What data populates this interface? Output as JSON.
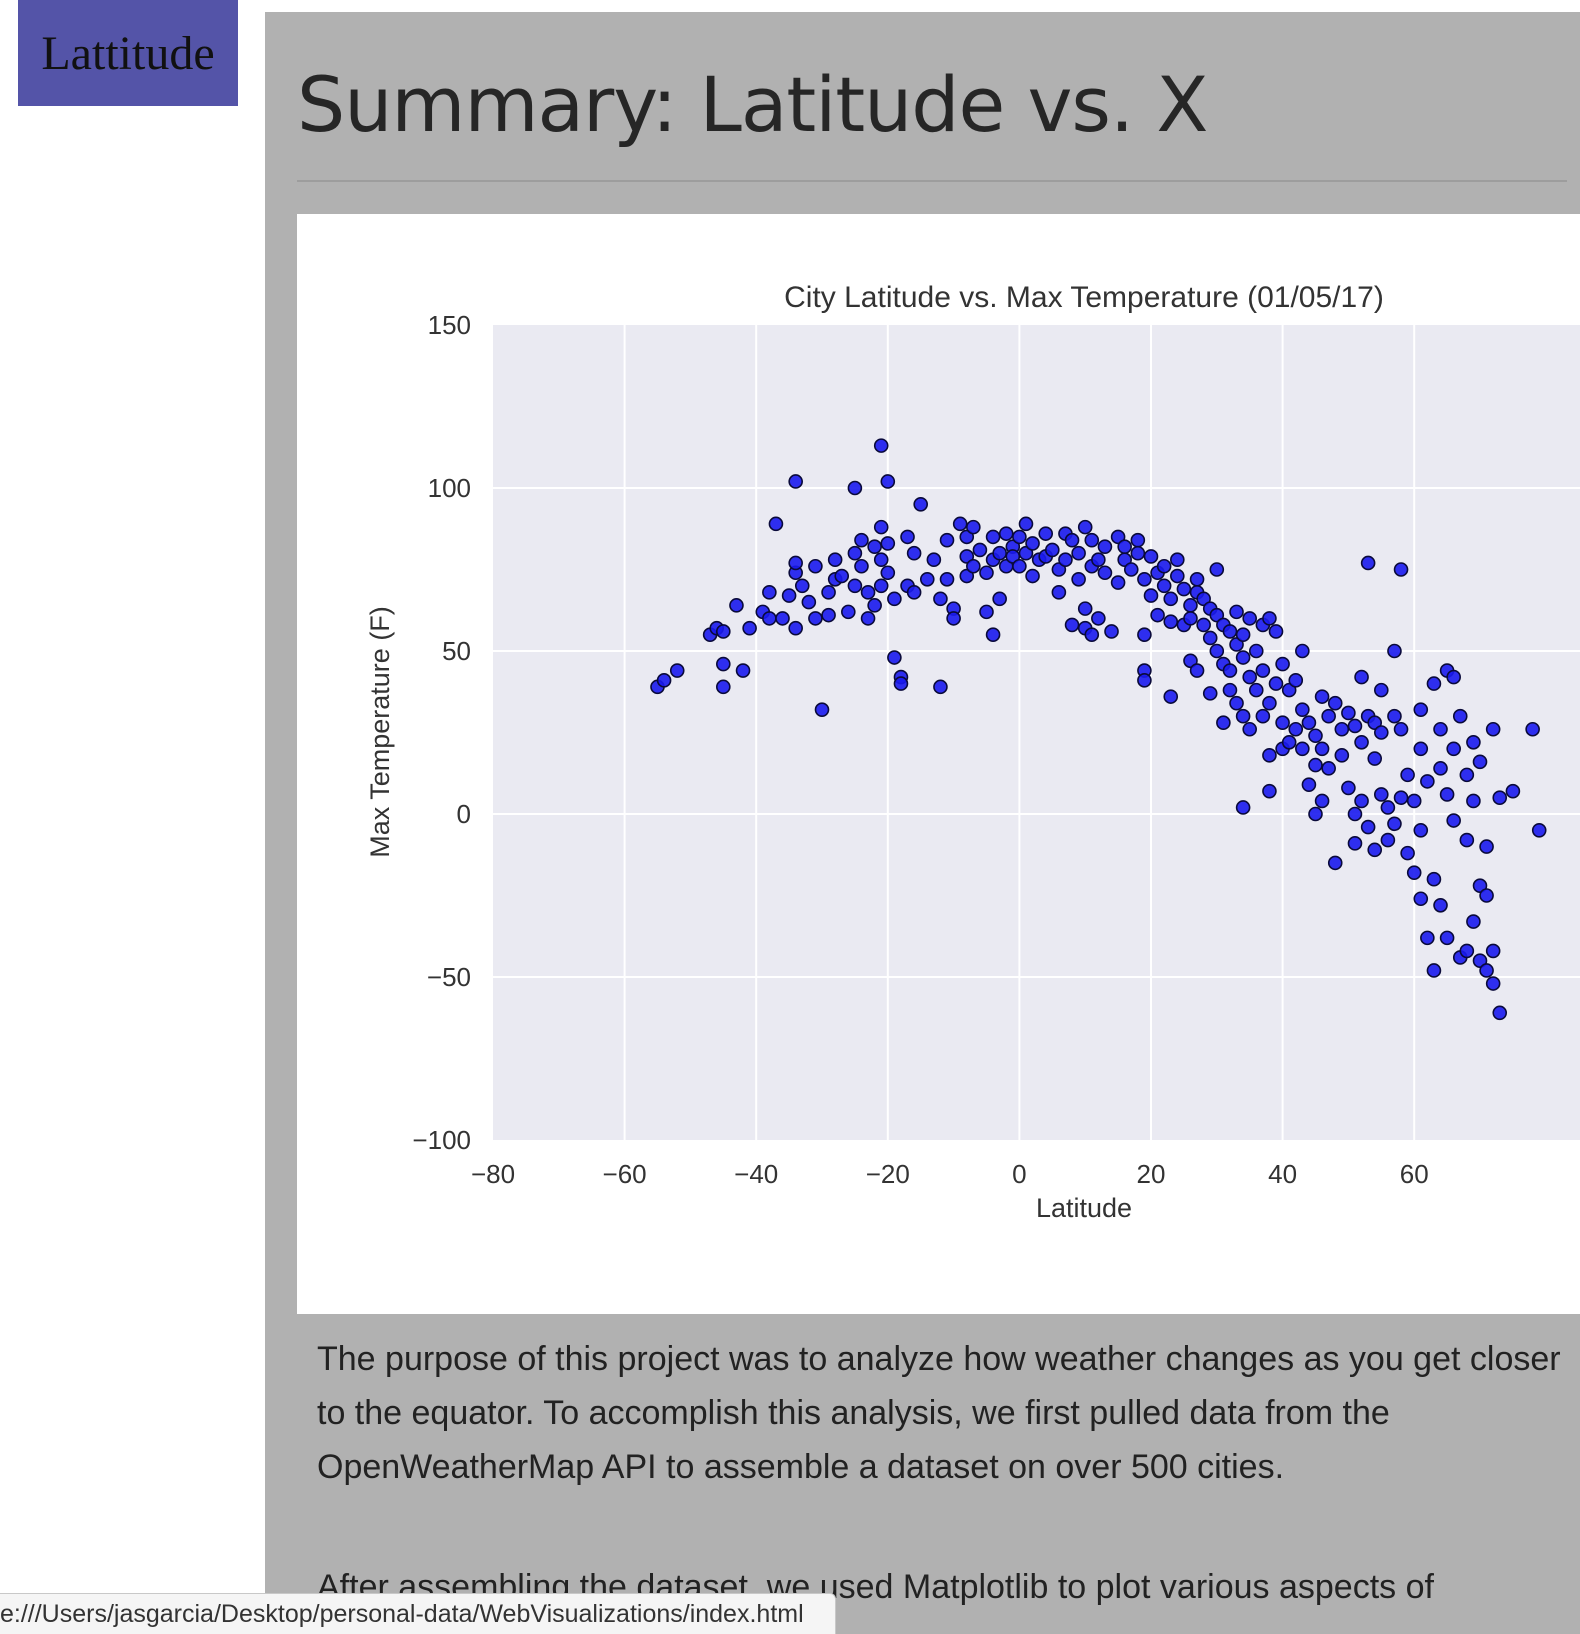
{
  "brand": {
    "label": "Lattitude"
  },
  "page": {
    "title": "Summary: Latitude vs. X"
  },
  "paragraphs": [
    "The purpose of this project was to analyze how weather changes as you get closer to the equator. To accomplish this analysis, we first pulled data from the OpenWeatherMap API to assemble a dataset on over 500 cities.",
    "After assembling the dataset, we used Matplotlib to plot various aspects of"
  ],
  "status_bar": {
    "url": "e:///Users/jasgarcia/Desktop/personal-data/WebVisualizations/index.html"
  },
  "chart_data": {
    "type": "scatter",
    "title": "City Latitude vs. Max Temperature (01/05/17)",
    "xlabel": "Latitude",
    "ylabel": "Max Temperature (F)",
    "xlim": [
      -80,
      80
    ],
    "ylim": [
      -100,
      150
    ],
    "xticks": [
      -80,
      -60,
      -40,
      -20,
      0,
      20,
      40,
      60
    ],
    "yticks": [
      -100,
      -50,
      0,
      50,
      100,
      150
    ],
    "grid": true,
    "colors": {
      "marker": "#1a1aee",
      "edge": "#0a0a3a",
      "plot_bg": "#eaeaf2",
      "grid": "#ffffff"
    },
    "points": [
      [
        -55,
        39
      ],
      [
        -54,
        41
      ],
      [
        -52,
        44
      ],
      [
        -47,
        55
      ],
      [
        -46,
        57
      ],
      [
        -45,
        56
      ],
      [
        -45,
        46
      ],
      [
        -45,
        39
      ],
      [
        -43,
        64
      ],
      [
        -42,
        44
      ],
      [
        -41,
        57
      ],
      [
        -39,
        62
      ],
      [
        -38,
        68
      ],
      [
        -38,
        60
      ],
      [
        -37,
        89
      ],
      [
        -36,
        60
      ],
      [
        -35,
        67
      ],
      [
        -34,
        74
      ],
      [
        -34,
        77
      ],
      [
        -34,
        57
      ],
      [
        -34,
        102
      ],
      [
        -33,
        70
      ],
      [
        -32,
        65
      ],
      [
        -31,
        76
      ],
      [
        -31,
        60
      ],
      [
        -30,
        32
      ],
      [
        -29,
        61
      ],
      [
        -29,
        68
      ],
      [
        -28,
        72
      ],
      [
        -28,
        78
      ],
      [
        -27,
        73
      ],
      [
        -26,
        62
      ],
      [
        -25,
        80
      ],
      [
        -25,
        70
      ],
      [
        -25,
        100
      ],
      [
        -24,
        84
      ],
      [
        -24,
        76
      ],
      [
        -23,
        60
      ],
      [
        -23,
        68
      ],
      [
        -22,
        82
      ],
      [
        -22,
        64
      ],
      [
        -21,
        88
      ],
      [
        -21,
        78
      ],
      [
        -21,
        70
      ],
      [
        -21,
        113
      ],
      [
        -20,
        102
      ],
      [
        -20,
        83
      ],
      [
        -20,
        74
      ],
      [
        -19,
        66
      ],
      [
        -19,
        48
      ],
      [
        -18,
        42
      ],
      [
        -18,
        40
      ],
      [
        -17,
        85
      ],
      [
        -17,
        70
      ],
      [
        -16,
        80
      ],
      [
        -16,
        68
      ],
      [
        -15,
        95
      ],
      [
        -14,
        72
      ],
      [
        -13,
        78
      ],
      [
        -12,
        66
      ],
      [
        -12,
        39
      ],
      [
        -11,
        84
      ],
      [
        -11,
        72
      ],
      [
        -10,
        63
      ],
      [
        -10,
        60
      ],
      [
        -9,
        89
      ],
      [
        -8,
        85
      ],
      [
        -8,
        79
      ],
      [
        -8,
        73
      ],
      [
        -7,
        88
      ],
      [
        -7,
        76
      ],
      [
        -6,
        81
      ],
      [
        -5,
        74
      ],
      [
        -5,
        62
      ],
      [
        -4,
        85
      ],
      [
        -4,
        78
      ],
      [
        -4,
        55
      ],
      [
        -3,
        80
      ],
      [
        -3,
        66
      ],
      [
        -2,
        86
      ],
      [
        -2,
        76
      ],
      [
        -1,
        82
      ],
      [
        -1,
        79
      ],
      [
        0,
        85
      ],
      [
        0,
        76
      ],
      [
        1,
        89
      ],
      [
        1,
        80
      ],
      [
        2,
        83
      ],
      [
        2,
        73
      ],
      [
        3,
        78
      ],
      [
        4,
        86
      ],
      [
        4,
        79
      ],
      [
        5,
        81
      ],
      [
        6,
        75
      ],
      [
        6,
        68
      ],
      [
        7,
        86
      ],
      [
        7,
        78
      ],
      [
        8,
        84
      ],
      [
        8,
        58
      ],
      [
        9,
        80
      ],
      [
        9,
        72
      ],
      [
        10,
        88
      ],
      [
        10,
        63
      ],
      [
        10,
        57
      ],
      [
        11,
        84
      ],
      [
        11,
        76
      ],
      [
        11,
        55
      ],
      [
        12,
        78
      ],
      [
        12,
        60
      ],
      [
        13,
        82
      ],
      [
        13,
        74
      ],
      [
        14,
        56
      ],
      [
        15,
        85
      ],
      [
        15,
        71
      ],
      [
        16,
        82
      ],
      [
        16,
        78
      ],
      [
        17,
        75
      ],
      [
        18,
        84
      ],
      [
        18,
        80
      ],
      [
        19,
        72
      ],
      [
        19,
        55
      ],
      [
        19,
        44
      ],
      [
        19,
        41
      ],
      [
        20,
        79
      ],
      [
        20,
        67
      ],
      [
        21,
        74
      ],
      [
        21,
        61
      ],
      [
        22,
        76
      ],
      [
        22,
        70
      ],
      [
        23,
        66
      ],
      [
        23,
        59
      ],
      [
        23,
        36
      ],
      [
        24,
        78
      ],
      [
        24,
        73
      ],
      [
        25,
        69
      ],
      [
        25,
        58
      ],
      [
        26,
        64
      ],
      [
        26,
        60
      ],
      [
        26,
        47
      ],
      [
        27,
        72
      ],
      [
        27,
        68
      ],
      [
        27,
        44
      ],
      [
        28,
        66
      ],
      [
        28,
        58
      ],
      [
        29,
        63
      ],
      [
        29,
        54
      ],
      [
        29,
        37
      ],
      [
        30,
        75
      ],
      [
        30,
        61
      ],
      [
        30,
        50
      ],
      [
        31,
        58
      ],
      [
        31,
        46
      ],
      [
        31,
        28
      ],
      [
        32,
        56
      ],
      [
        32,
        44
      ],
      [
        32,
        38
      ],
      [
        33,
        62
      ],
      [
        33,
        52
      ],
      [
        33,
        34
      ],
      [
        34,
        55
      ],
      [
        34,
        48
      ],
      [
        34,
        30
      ],
      [
        34,
        2
      ],
      [
        35,
        60
      ],
      [
        35,
        42
      ],
      [
        35,
        26
      ],
      [
        36,
        50
      ],
      [
        36,
        38
      ],
      [
        37,
        58
      ],
      [
        37,
        44
      ],
      [
        37,
        30
      ],
      [
        38,
        60
      ],
      [
        38,
        34
      ],
      [
        38,
        18
      ],
      [
        38,
        7
      ],
      [
        39,
        56
      ],
      [
        39,
        40
      ],
      [
        40,
        46
      ],
      [
        40,
        28
      ],
      [
        40,
        20
      ],
      [
        41,
        38
      ],
      [
        41,
        22
      ],
      [
        42,
        41
      ],
      [
        42,
        26
      ],
      [
        43,
        50
      ],
      [
        43,
        32
      ],
      [
        43,
        20
      ],
      [
        44,
        28
      ],
      [
        44,
        9
      ],
      [
        45,
        24
      ],
      [
        45,
        15
      ],
      [
        45,
        0
      ],
      [
        46,
        36
      ],
      [
        46,
        20
      ],
      [
        46,
        4
      ],
      [
        47,
        30
      ],
      [
        47,
        14
      ],
      [
        48,
        34
      ],
      [
        48,
        -15
      ],
      [
        49,
        26
      ],
      [
        49,
        18
      ],
      [
        50,
        31
      ],
      [
        50,
        8
      ],
      [
        51,
        27
      ],
      [
        51,
        0
      ],
      [
        51,
        -9
      ],
      [
        52,
        22
      ],
      [
        52,
        4
      ],
      [
        52,
        42
      ],
      [
        53,
        30
      ],
      [
        53,
        -4
      ],
      [
        53,
        77
      ],
      [
        54,
        17
      ],
      [
        54,
        28
      ],
      [
        54,
        -11
      ],
      [
        55,
        38
      ],
      [
        55,
        25
      ],
      [
        55,
        6
      ],
      [
        56,
        2
      ],
      [
        56,
        -8
      ],
      [
        57,
        30
      ],
      [
        57,
        50
      ],
      [
        57,
        -3
      ],
      [
        58,
        75
      ],
      [
        58,
        26
      ],
      [
        58,
        5
      ],
      [
        59,
        12
      ],
      [
        59,
        -12
      ],
      [
        60,
        4
      ],
      [
        60,
        -18
      ],
      [
        61,
        32
      ],
      [
        61,
        20
      ],
      [
        61,
        -26
      ],
      [
        61,
        -5
      ],
      [
        62,
        10
      ],
      [
        62,
        -38
      ],
      [
        63,
        40
      ],
      [
        63,
        -20
      ],
      [
        63,
        -48
      ],
      [
        64,
        26
      ],
      [
        64,
        14
      ],
      [
        64,
        -28
      ],
      [
        65,
        44
      ],
      [
        65,
        6
      ],
      [
        65,
        -38
      ],
      [
        66,
        20
      ],
      [
        66,
        -2
      ],
      [
        66,
        42
      ],
      [
        67,
        -44
      ],
      [
        67,
        30
      ],
      [
        68,
        12
      ],
      [
        68,
        -8
      ],
      [
        68,
        -42
      ],
      [
        69,
        22
      ],
      [
        69,
        -33
      ],
      [
        69,
        4
      ],
      [
        70,
        16
      ],
      [
        70,
        -22
      ],
      [
        70,
        -45
      ],
      [
        71,
        -10
      ],
      [
        71,
        -25
      ],
      [
        71,
        -48
      ],
      [
        72,
        26
      ],
      [
        72,
        -42
      ],
      [
        72,
        -52
      ],
      [
        73,
        -61
      ],
      [
        73,
        5
      ],
      [
        75,
        7
      ],
      [
        78,
        26
      ],
      [
        79,
        -5
      ]
    ]
  }
}
